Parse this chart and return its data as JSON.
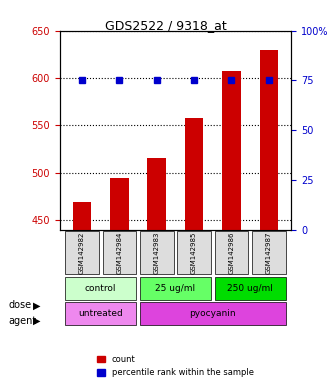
{
  "title": "GDS2522 / 9318_at",
  "samples": [
    "GSM142982",
    "GSM142984",
    "GSM142983",
    "GSM142985",
    "GSM142986",
    "GSM142987"
  ],
  "counts": [
    469,
    495,
    516,
    558,
    607,
    630
  ],
  "percentile_ranks": [
    75,
    75,
    75,
    75,
    75,
    75
  ],
  "bar_color": "#cc0000",
  "dot_color": "#0000cc",
  "ylim_left": [
    440,
    650
  ],
  "ylim_right": [
    0,
    100
  ],
  "yticks_left": [
    450,
    500,
    550,
    600,
    650
  ],
  "yticks_right": [
    0,
    25,
    50,
    75,
    100
  ],
  "grid_color": "#000000",
  "dose_labels": [
    {
      "label": "control",
      "span": [
        0,
        2
      ],
      "color": "#ccffcc"
    },
    {
      "label": "25 ug/ml",
      "span": [
        2,
        4
      ],
      "color": "#66ff66"
    },
    {
      "label": "250 ug/ml",
      "span": [
        4,
        6
      ],
      "color": "#00dd00"
    }
  ],
  "agent_labels": [
    {
      "label": "untreated",
      "span": [
        0,
        2
      ],
      "color": "#ee88ee"
    },
    {
      "label": "pyocyanin",
      "span": [
        2,
        6
      ],
      "color": "#dd44dd"
    }
  ],
  "dose_arrow_label": "dose",
  "agent_arrow_label": "agent",
  "legend_count_label": "count",
  "legend_percentile_label": "percentile rank within the sample",
  "background_plot": "#ffffff",
  "background_sample": "#dddddd",
  "left_tick_color": "#cc0000",
  "right_tick_color": "#0000cc"
}
